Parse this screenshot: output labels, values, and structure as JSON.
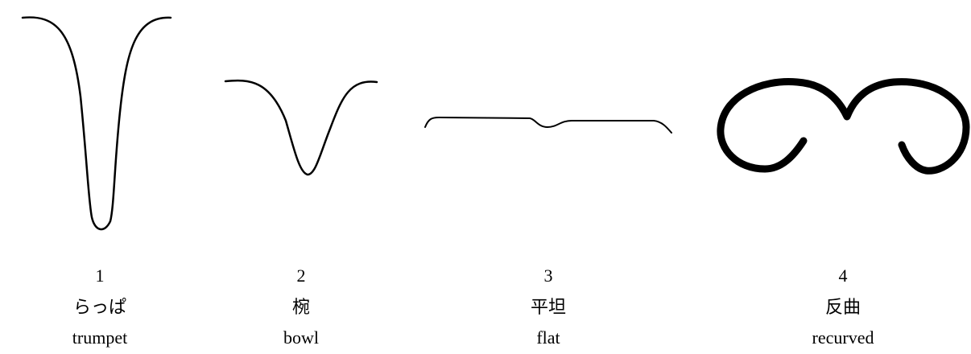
{
  "items": [
    {
      "number": "1",
      "label_ja": "らっぱ",
      "label_en": "trumpet"
    },
    {
      "number": "2",
      "label_ja": "椀",
      "label_en": "bowl"
    },
    {
      "number": "3",
      "label_ja": "平坦",
      "label_en": "flat"
    },
    {
      "number": "4",
      "label_ja": "反曲",
      "label_en": "recurved"
    }
  ]
}
